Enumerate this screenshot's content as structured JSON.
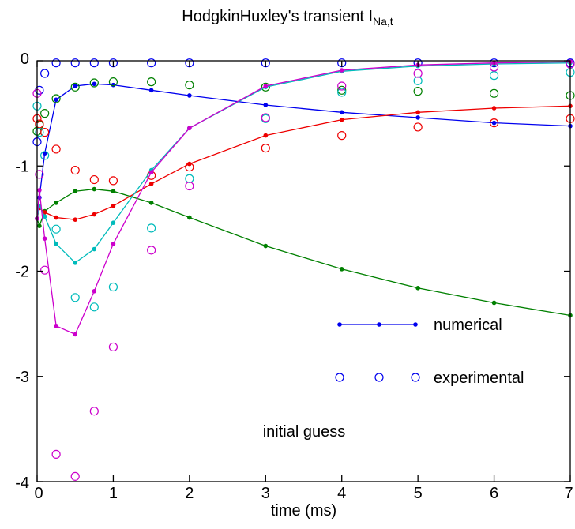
{
  "chart_data": {
    "type": "line",
    "title": "HodgkinHuxley's transient I",
    "title_subscript": "Na,t",
    "xlabel": "time (ms)",
    "ylabel": "",
    "xlim": [
      0,
      7
    ],
    "ylim": [
      -4,
      0
    ],
    "x_ticks": [
      0,
      1,
      2,
      3,
      4,
      5,
      6,
      7
    ],
    "y_ticks": [
      0,
      -1,
      -2,
      -3,
      -4
    ],
    "x_tick_labels": [
      "0",
      "1",
      "2",
      "3",
      "4",
      "5",
      "6",
      "7"
    ],
    "y_tick_labels": [
      "0",
      "-1",
      "-2",
      "-3",
      "-4"
    ],
    "grid": false,
    "legend": {
      "position": "right",
      "entries": [
        {
          "label": "numerical",
          "style": "line-dot",
          "color": "#0000ee"
        },
        {
          "label": "experimental",
          "style": "circle",
          "color": "#0000ee"
        }
      ]
    },
    "annotation": "initial guess",
    "series": [
      {
        "color": "#0000ee",
        "numerical_x": [
          0,
          0.03,
          0.1,
          0.25,
          0.5,
          0.75,
          1.0,
          1.5,
          2,
          3,
          4,
          5,
          6,
          7
        ],
        "numerical_y": [
          -1.5,
          -1.3,
          -0.88,
          -0.37,
          -0.24,
          -0.22,
          -0.23,
          -0.28,
          -0.33,
          -0.42,
          -0.49,
          -0.54,
          -0.59,
          -0.62
        ],
        "experimental_x": [
          0,
          0.03,
          0.1,
          0.25,
          0.5,
          0.75,
          1.0,
          1.5,
          2,
          3,
          4,
          5,
          6,
          7
        ],
        "experimental_y": [
          -0.77,
          -0.28,
          -0.12,
          -0.02,
          -0.02,
          -0.02,
          -0.02,
          -0.02,
          -0.02,
          -0.02,
          -0.02,
          -0.02,
          -0.02,
          -0.02
        ]
      },
      {
        "color": "#008000",
        "numerical_x": [
          0,
          0.03,
          0.1,
          0.25,
          0.5,
          0.75,
          1.0,
          1.5,
          2,
          3,
          4,
          5,
          6,
          7
        ],
        "numerical_y": [
          -1.5,
          -1.57,
          -1.43,
          -1.35,
          -1.24,
          -1.22,
          -1.24,
          -1.35,
          -1.49,
          -1.76,
          -1.98,
          -2.16,
          -2.3,
          -2.42
        ],
        "experimental_x": [
          0,
          0.03,
          0.1,
          0.25,
          0.5,
          0.75,
          1.0,
          1.5,
          2,
          3,
          4,
          5,
          6,
          7
        ],
        "experimental_y": [
          -0.67,
          -0.61,
          -0.5,
          -0.36,
          -0.25,
          -0.21,
          -0.2,
          -0.2,
          -0.23,
          -0.25,
          -0.28,
          -0.29,
          -0.31,
          -0.33
        ]
      },
      {
        "color": "#ee0000",
        "numerical_x": [
          0,
          0.03,
          0.1,
          0.25,
          0.5,
          0.75,
          1.0,
          1.5,
          2,
          3,
          4,
          5,
          6,
          7
        ],
        "numerical_y": [
          -1.5,
          -1.4,
          -1.44,
          -1.49,
          -1.51,
          -1.46,
          -1.38,
          -1.17,
          -0.98,
          -0.71,
          -0.56,
          -0.49,
          -0.45,
          -0.43
        ],
        "experimental_x": [
          0,
          0.03,
          0.1,
          0.25,
          0.5,
          0.75,
          1.0,
          1.5,
          2,
          3,
          4,
          5,
          6,
          7
        ],
        "experimental_y": [
          -0.55,
          -0.6,
          -0.68,
          -0.84,
          -1.04,
          -1.13,
          -1.14,
          -1.09,
          -1.01,
          -0.83,
          -0.71,
          -0.63,
          -0.59,
          -0.55
        ]
      },
      {
        "color": "#00bbbb",
        "numerical_x": [
          0,
          0.03,
          0.1,
          0.25,
          0.5,
          0.75,
          1.0,
          1.5,
          2,
          3,
          4,
          5,
          6,
          7
        ],
        "numerical_y": [
          -1.5,
          -1.38,
          -1.48,
          -1.74,
          -1.92,
          -1.79,
          -1.54,
          -1.04,
          -0.64,
          -0.25,
          -0.1,
          -0.05,
          -0.03,
          -0.02
        ],
        "experimental_x": [
          0,
          0.03,
          0.1,
          0.25,
          0.5,
          0.75,
          1.0,
          1.5,
          2,
          3,
          4,
          5,
          6,
          7
        ],
        "experimental_y": [
          -0.43,
          -0.68,
          -0.9,
          -1.6,
          -2.25,
          -2.34,
          -2.15,
          -1.59,
          -1.12,
          -0.55,
          -0.3,
          -0.19,
          -0.14,
          -0.11
        ]
      },
      {
        "color": "#cc00cc",
        "numerical_x": [
          0,
          0.03,
          0.1,
          0.25,
          0.5,
          0.75,
          1.0,
          1.5,
          2,
          3,
          4,
          5,
          6,
          7
        ],
        "numerical_y": [
          -1.5,
          -1.23,
          -1.69,
          -2.52,
          -2.6,
          -2.19,
          -1.74,
          -1.06,
          -0.64,
          -0.24,
          -0.09,
          -0.04,
          -0.02,
          -0.01
        ],
        "experimental_x": [
          0,
          0.03,
          0.1,
          0.25,
          0.5,
          0.75,
          1.0,
          1.5,
          2,
          3,
          4,
          5,
          6,
          7
        ],
        "experimental_y": [
          -0.31,
          -1.08,
          -1.99,
          -3.74,
          -3.95,
          -3.33,
          -2.72,
          -1.8,
          -1.19,
          -0.54,
          -0.24,
          -0.12,
          -0.06,
          -0.03
        ]
      }
    ]
  }
}
